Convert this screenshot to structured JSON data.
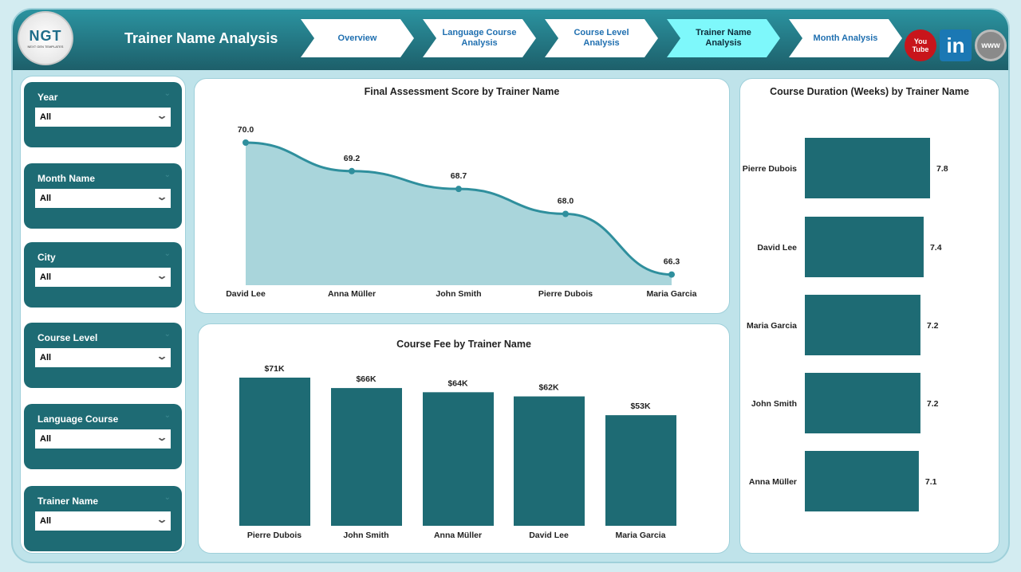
{
  "header": {
    "title": "Trainer Name Analysis",
    "logo_text": "NGT",
    "logo_sub": "NEXT GEN TEMPLATES"
  },
  "nav": [
    {
      "label": "Overview"
    },
    {
      "label": "Language Course Analysis"
    },
    {
      "label": "Course Level Analysis"
    },
    {
      "label": "Trainer Name Analysis",
      "active": true
    },
    {
      "label": "Month Analysis"
    }
  ],
  "social": {
    "youtube": "You Tube",
    "linkedin": "in",
    "web": "www"
  },
  "filters": [
    {
      "label": "Year",
      "value": "All"
    },
    {
      "label": "Month Name",
      "value": "All"
    },
    {
      "label": "City",
      "value": "All"
    },
    {
      "label": "Course Level",
      "value": "All"
    },
    {
      "label": "Language Course",
      "value": "All"
    },
    {
      "label": "Trainer Name",
      "value": "All"
    }
  ],
  "colors": {
    "bar": "#1e6b74",
    "area": "#a9d5db",
    "line": "#2f8f9d"
  },
  "chart_data": [
    {
      "type": "area",
      "title": "Final Assessment Score by Trainer Name",
      "categories": [
        "David Lee",
        "Anna Müller",
        "John Smith",
        "Pierre Dubois",
        "Maria Garcia"
      ],
      "values": [
        70.0,
        69.2,
        68.7,
        68.0,
        66.3
      ],
      "labels": [
        "70.0",
        "69.2",
        "68.7",
        "68.0",
        "66.3"
      ],
      "ylim": [
        66,
        70
      ]
    },
    {
      "type": "bar",
      "title": "Course Fee by Trainer Name",
      "categories": [
        "Pierre Dubois",
        "John Smith",
        "Anna Müller",
        "David Lee",
        "Maria Garcia"
      ],
      "values": [
        71,
        66,
        64,
        62,
        53
      ],
      "labels": [
        "$71K",
        "$66K",
        "$64K",
        "$62K",
        "$53K"
      ],
      "ylim": [
        0,
        71
      ]
    },
    {
      "type": "bar",
      "orientation": "horizontal",
      "title": "Course Duration (Weeks) by Trainer Name",
      "categories": [
        "Pierre Dubois",
        "David Lee",
        "Maria Garcia",
        "John Smith",
        "Anna Müller"
      ],
      "values": [
        7.8,
        7.4,
        7.2,
        7.2,
        7.1
      ],
      "labels": [
        "7.8",
        "7.4",
        "7.2",
        "7.2",
        "7.1"
      ],
      "xlim": [
        0,
        7.8
      ]
    }
  ]
}
